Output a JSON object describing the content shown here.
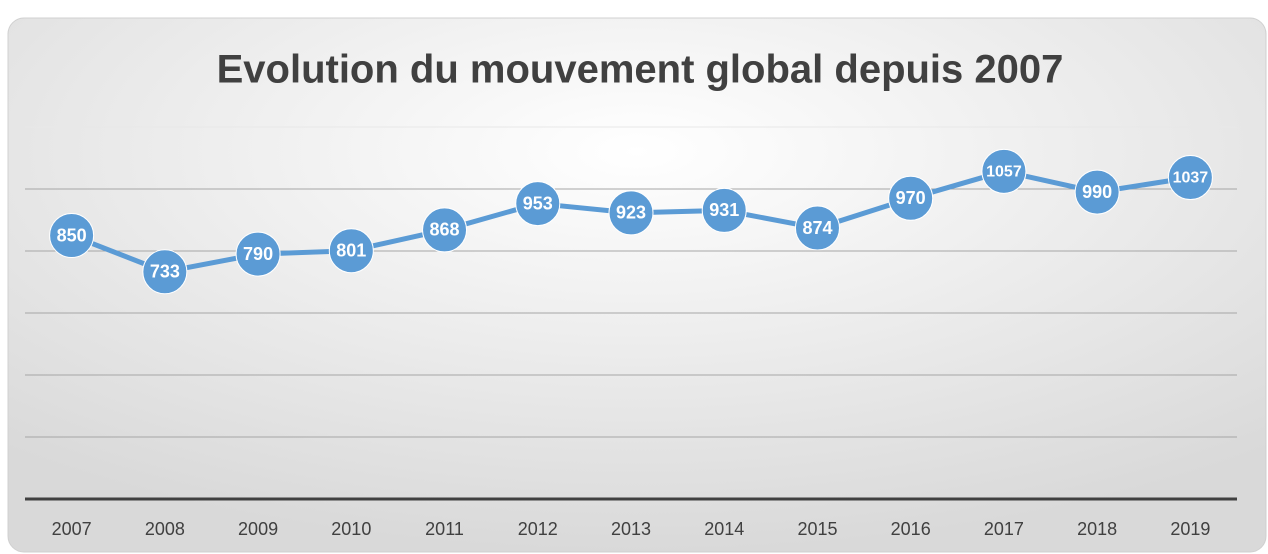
{
  "chart_data": {
    "type": "line",
    "title": "Evolution du mouvement global depuis 2007",
    "categories": [
      "2007",
      "2008",
      "2009",
      "2010",
      "2011",
      "2012",
      "2013",
      "2014",
      "2015",
      "2016",
      "2017",
      "2018",
      "2019"
    ],
    "values": [
      850,
      733,
      790,
      801,
      868,
      953,
      923,
      931,
      874,
      970,
      1057,
      990,
      1037
    ],
    "color": "#5b9bd5",
    "ylim": [
      0,
      1200
    ],
    "yticks": [
      0,
      200,
      400,
      600,
      800,
      1000,
      1200
    ],
    "grid": true
  }
}
